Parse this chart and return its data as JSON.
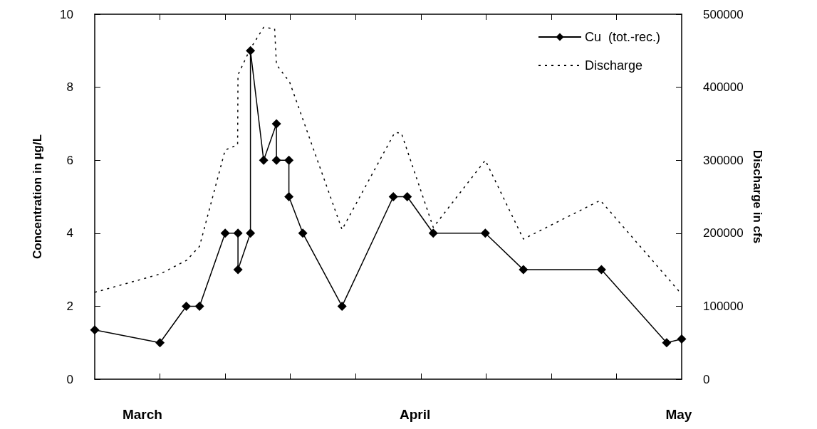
{
  "chart_data": {
    "type": "line",
    "xlim": [
      "--02-23T14:00",
      "--05-01T08:00"
    ],
    "xticks": [
      {
        "value": "--03-01",
        "label": "March"
      },
      {
        "value": "--03-03",
        "label": null
      },
      {
        "value": "--03-10T10:00",
        "label": null
      },
      {
        "value": "--03-17T20:00",
        "label": null
      },
      {
        "value": "--03-25T06:00",
        "label": null
      },
      {
        "value": "--04-01",
        "label": "April"
      },
      {
        "value": "--04-01T16:00",
        "label": null
      },
      {
        "value": "--04-09T02:00",
        "label": null
      },
      {
        "value": "--04-16T12:00",
        "label": null
      },
      {
        "value": "--04-23T22:00",
        "label": null
      },
      {
        "value": "--05-01",
        "label": "May"
      }
    ],
    "ylabel": "Concentration in µg/L",
    "y2label": "Discharge in cfs",
    "ylim": [
      0,
      10
    ],
    "yticks": [
      0,
      2,
      4,
      6,
      8,
      10
    ],
    "y2lim": [
      0,
      500000
    ],
    "y2ticks": [
      0,
      100000,
      200000,
      300000,
      400000,
      500000
    ],
    "grid": false,
    "legend": "top right",
    "series": [
      {
        "name": "Cu  (tot.-rec.)",
        "color": "#000000",
        "marker": "diamond",
        "line_style": "solid",
        "axis": "y",
        "x": [
          "--02-23T14:00",
          "--03-03",
          "--03-06",
          "--03-07T12:00",
          "--03-10T10:00",
          "--03-11T21:00",
          "--03-11T21:00",
          "--03-13T07:00",
          "--03-13T07:00",
          "--03-14T19:00",
          "--03-16T06:00",
          "--03-16T06:00",
          "--03-17T16:00",
          "--03-17T16:00",
          "--03-19T06:00",
          "--03-23T17:00",
          "--03-29T13:00",
          "--03-31T03:00",
          "--04-03T02:00",
          "--04-09",
          "--04-13T08:00",
          "--04-22T05:00",
          "--04-29T15:00",
          "--05-01T08:00"
        ],
        "values": [
          1.35,
          1,
          2,
          2,
          4,
          4,
          3,
          4,
          9,
          6,
          7,
          6,
          6,
          5,
          4,
          2,
          5,
          5,
          4,
          4,
          3,
          3,
          1,
          1.1
        ]
      },
      {
        "name": "Discharge",
        "color": "#000000",
        "marker": "none",
        "line_style": "dotted",
        "axis": "y2",
        "x": [
          "--02-23T14:00",
          "--03-03",
          "--03-06T01:00",
          "--03-07T12:00",
          "--03-10T10:00",
          "--03-11T20:00",
          "--03-11T21:00",
          "--03-13T06:00",
          "--03-14T19:00",
          "--03-16T01:00",
          "--03-16T06:00",
          "--03-17T18:00",
          "--03-23T17:00",
          "--03-29T17:00",
          "--03-30T11:00",
          "--04-03T02:00",
          "--04-09",
          "--04-13T08:00",
          "--04-22T02:00",
          "--05-01",
          "--05-01T08:00"
        ],
        "values": [
          119000,
          144000,
          163000,
          182000,
          314000,
          321000,
          417000,
          452000,
          482000,
          480000,
          431000,
          407000,
          205000,
          338000,
          337000,
          208000,
          300000,
          192000,
          245000,
          121000,
          121000
        ]
      }
    ]
  }
}
